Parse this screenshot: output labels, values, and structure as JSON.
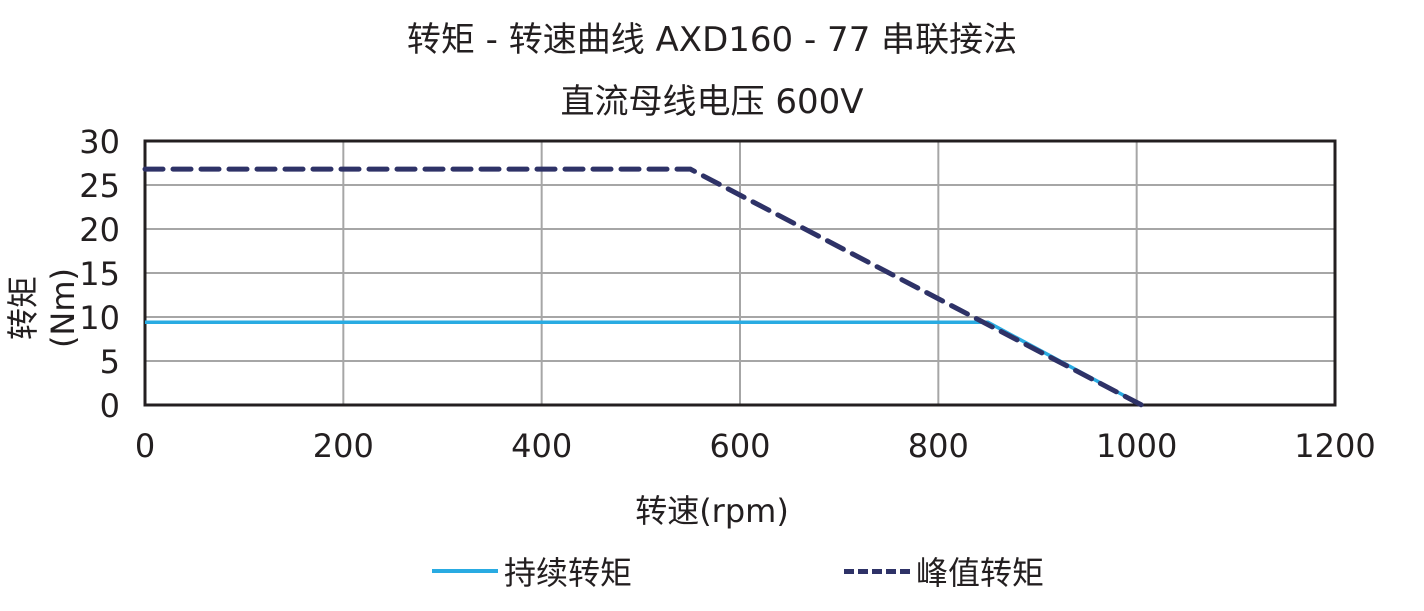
{
  "chart_data": {
    "type": "line",
    "title": "转矩 - 转速曲线 AXD160 - 77 串联接法",
    "subtitle": "直流母线电压  600V",
    "xlabel": "转速(rpm)",
    "ylabel": "转矩(Nm)",
    "xlim": [
      0,
      1200
    ],
    "ylim": [
      0,
      30
    ],
    "x_ticks": [
      0,
      200,
      400,
      600,
      800,
      1000,
      1200
    ],
    "y_ticks": [
      0,
      5,
      10,
      15,
      20,
      25,
      30
    ],
    "grid": true,
    "legend_position": "bottom",
    "series": [
      {
        "name": "持续转矩",
        "style": "solid",
        "color": "#29abe2",
        "x": [
          0,
          850,
          1005
        ],
        "y": [
          9.4,
          9.4,
          0
        ]
      },
      {
        "name": "峰值转矩",
        "style": "dashed",
        "color": "#2e3267",
        "x": [
          0,
          550,
          1005
        ],
        "y": [
          26.8,
          26.8,
          0
        ]
      }
    ]
  },
  "labels": {
    "title": "转矩 - 转速曲线 AXD160 - 77 串联接法",
    "subtitle": "直流母线电压  600V",
    "xlabel": "转速(rpm)",
    "ylabel": "转矩(Nm)",
    "legend_continuous": "持续转矩",
    "legend_peak": "峰值转矩"
  },
  "colors": {
    "continuous": "#29abe2",
    "peak": "#2e3267",
    "grid": "#a6a6a6",
    "axis": "#231f20"
  }
}
